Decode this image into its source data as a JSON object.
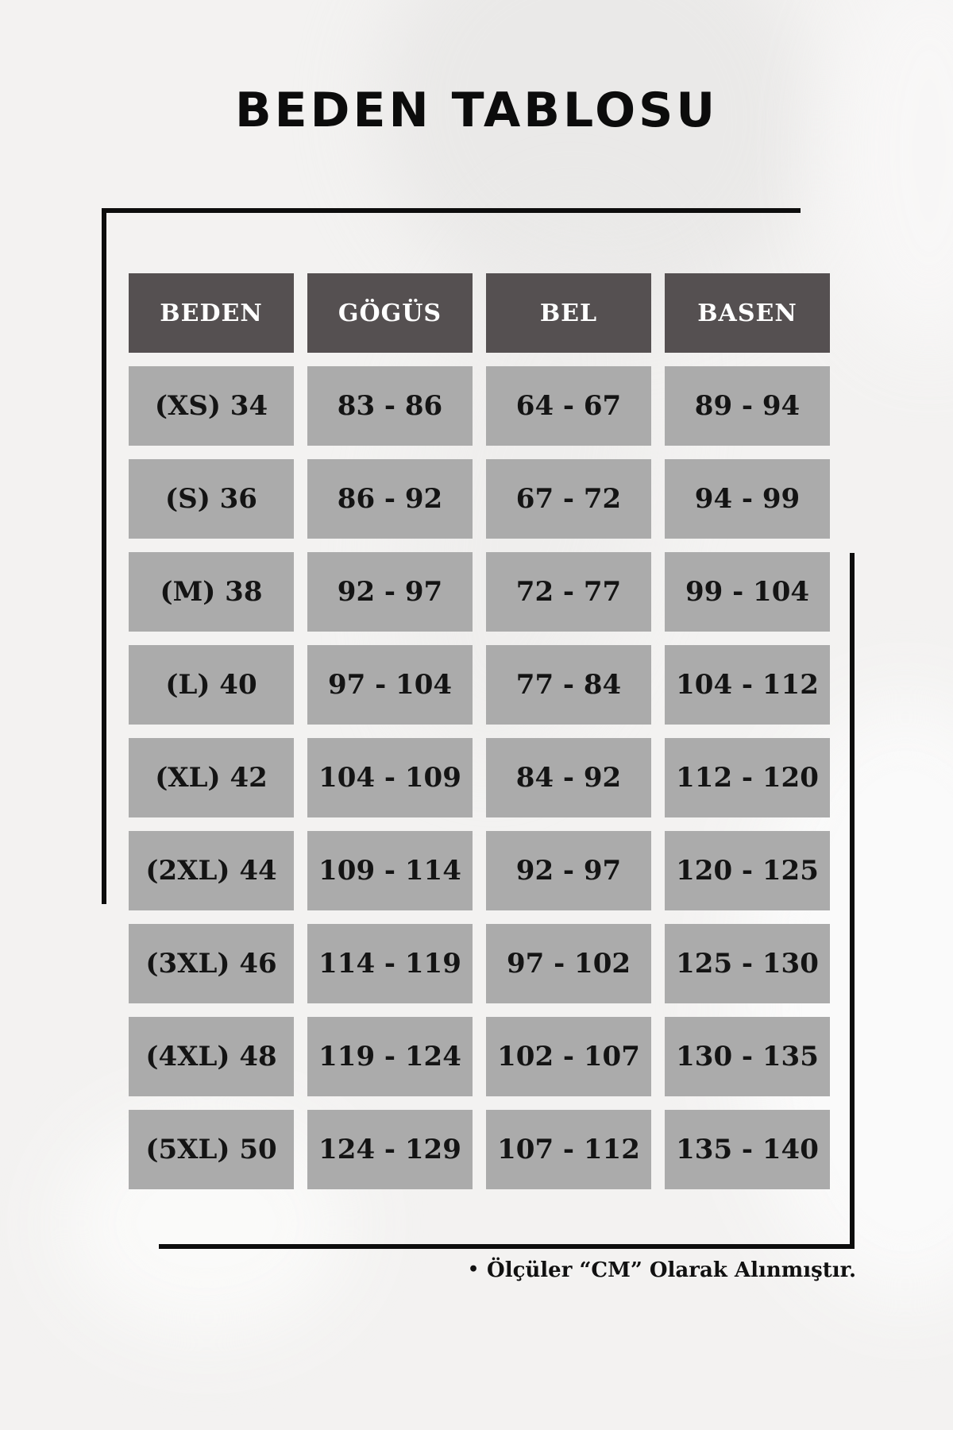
{
  "title": "BEDEN TABLOSU",
  "chart_data": {
    "type": "table",
    "title": "BEDEN TABLOSU",
    "columns": [
      "BEDEN",
      "GÖGÜS",
      "BEL",
      "BASEN"
    ],
    "rows": [
      [
        "(XS) 34",
        "83 - 86",
        "64 - 67",
        "89 - 94"
      ],
      [
        "(S) 36",
        "86 - 92",
        "67 - 72",
        "94 - 99"
      ],
      [
        "(M) 38",
        "92 - 97",
        "72 - 77",
        "99 - 104"
      ],
      [
        "(L) 40",
        "97 - 104",
        "77 - 84",
        "104 - 112"
      ],
      [
        "(XL) 42",
        "104 - 109",
        "84 - 92",
        "112 - 120"
      ],
      [
        "(2XL) 44",
        "109 - 114",
        "92 - 97",
        "120 - 125"
      ],
      [
        "(3XL) 46",
        "114 - 119",
        "97 - 102",
        "125 - 130"
      ],
      [
        "(4XL) 48",
        "119 - 124",
        "102 - 107",
        "130 - 135"
      ],
      [
        "(5XL) 50",
        "124 - 129",
        "107 - 112",
        "135 - 140"
      ]
    ],
    "units_note": "Ölçüler “CM” Olarak Alınmıştır."
  },
  "footer": {
    "bullet": "•",
    "note": "Ölçüler “CM” Olarak Alınmıştır."
  },
  "colors": {
    "page_bg": "#f3f2f1",
    "header_bg": "#555051",
    "cell_bg": "#ababab",
    "cell_text": "#141414",
    "accent_line": "#0d0d0d"
  }
}
